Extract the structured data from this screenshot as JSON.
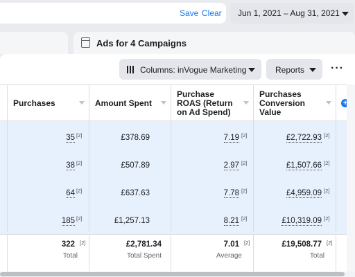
{
  "toolbar": {
    "save": "Save",
    "clear": "Clear",
    "date_range": "Jun 1, 2021 – Aug 31, 2021"
  },
  "panel": {
    "title": "Ads for 4 Campaigns",
    "columns_btn": "Columns: inVogue Marketing",
    "reports_btn": "Reports",
    "more": "···"
  },
  "headers": [
    {
      "l1": "Purchases",
      "l2": "",
      "l3": ""
    },
    {
      "l1": "Amount Spent",
      "l2": "",
      "l3": ""
    },
    {
      "l1": "Purchase",
      "l2": "ROAS (Return",
      "l3": "on Ad Spend)"
    },
    {
      "l1": "Purchases",
      "l2": "Conversion",
      "l3": "Value"
    }
  ],
  "add_column": "+",
  "rows": [
    {
      "purchases": "35",
      "spent": "£378.69",
      "roas": "7.19",
      "value": "£2,722.93"
    },
    {
      "purchases": "38",
      "spent": "£507.89",
      "roas": "2.97",
      "value": "£1,507.66"
    },
    {
      "purchases": "64",
      "spent": "£637.63",
      "roas": "7.78",
      "value": "£4,959.09"
    },
    {
      "purchases": "185",
      "spent": "£1,257.13",
      "roas": "8.21",
      "value": "£10,319.09"
    }
  ],
  "footnote": "[2]",
  "totals": {
    "purchases": "322",
    "purchases_sub": "Total",
    "spent": "£2,781.34",
    "spent_sub": "Total Spent",
    "roas": "7.01",
    "roas_sub": "Average",
    "value": "£19,508.77",
    "value_sub": "Total"
  }
}
